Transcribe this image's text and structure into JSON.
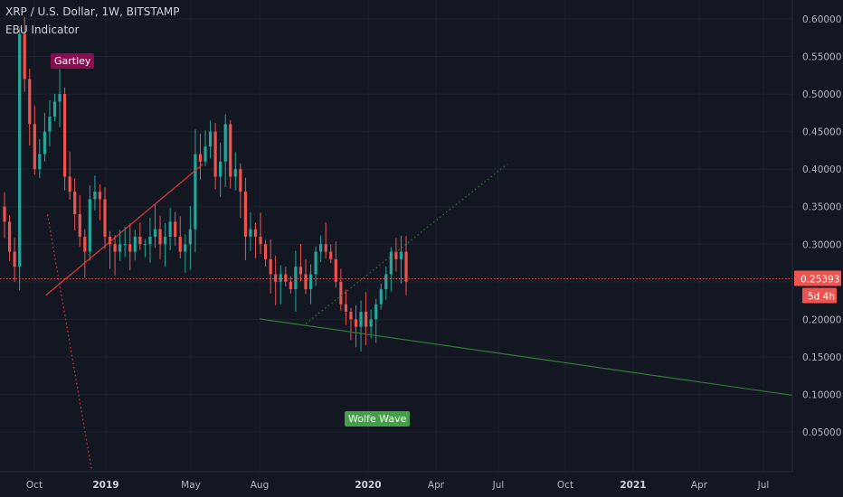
{
  "header": {
    "symbol_line": "XRP / U.S. Dollar, 1W, BITSTAMP",
    "indicator_line": "EBU Indicator"
  },
  "colors": {
    "background": "#131722",
    "grid": "#1e222d",
    "up": "#26a69a",
    "down": "#ef5350",
    "axis_text": "#b2b5be",
    "trend_green": "#2e7d32",
    "trend_red": "#e53935",
    "gartley_bg": "#880e4f",
    "wolfe_bg": "#43a047",
    "price_tag": "#ef5350"
  },
  "annotations": {
    "gartley": "Gartley",
    "wolfe_wave": "Wolfe Wave"
  },
  "price_label": {
    "value": "0.25393",
    "countdown": "5d 4h"
  },
  "chart_data": {
    "type": "candlestick",
    "title": "XRP / U.S. Dollar, 1W, BITSTAMP",
    "ylim": [
      0.0,
      0.62
    ],
    "y_ticks": [
      "0.60000",
      "0.55000",
      "0.50000",
      "0.45000",
      "0.40000",
      "0.35000",
      "0.30000",
      "0.25000",
      "0.20000",
      "0.15000",
      "0.10000",
      "0.05000"
    ],
    "x_ticks": [
      "Oct",
      "2019",
      "May",
      "Aug",
      "2020",
      "Apr",
      "Jul",
      "Oct",
      "2021",
      "Apr",
      "Jul"
    ],
    "x_ticks_bold": [
      "2019",
      "2020",
      "2021"
    ],
    "current_price": 0.25393,
    "closes": [
      0.33,
      0.29,
      0.27,
      0.58,
      0.52,
      0.46,
      0.4,
      0.42,
      0.45,
      0.47,
      0.49,
      0.5,
      0.39,
      0.37,
      0.34,
      0.31,
      0.29,
      0.36,
      0.37,
      0.36,
      0.31,
      0.3,
      0.29,
      0.3,
      0.3,
      0.29,
      0.31,
      0.3,
      0.3,
      0.31,
      0.32,
      0.3,
      0.31,
      0.33,
      0.31,
      0.29,
      0.3,
      0.32,
      0.42,
      0.41,
      0.43,
      0.45,
      0.39,
      0.41,
      0.46,
      0.39,
      0.4,
      0.37,
      0.31,
      0.32,
      0.31,
      0.3,
      0.28,
      0.26,
      0.25,
      0.26,
      0.25,
      0.24,
      0.27,
      0.26,
      0.24,
      0.26,
      0.29,
      0.3,
      0.29,
      0.28,
      0.25,
      0.22,
      0.21,
      0.2,
      0.19,
      0.21,
      0.19,
      0.2,
      0.22,
      0.24,
      0.26,
      0.29,
      0.28,
      0.29,
      0.25
    ],
    "trend_lines": [
      {
        "name": "wolfe-line-1-4",
        "from": [
          0.3275,
          0.324
        ],
        "to": [
          1.0,
          0.162
        ],
        "style": "solid",
        "color": "#2e7d32"
      },
      {
        "name": "wolfe-dotted-upper",
        "from": [
          0.386,
          0.314
        ],
        "to": [
          0.64,
          0.652
        ],
        "style": "dotted",
        "color": "#2e7d32"
      },
      {
        "name": "gartley-red-upper",
        "from": [
          0.058,
          0.374
        ],
        "to": [
          0.256,
          0.652
        ],
        "style": "solid",
        "color": "#e53935"
      },
      {
        "name": "gartley-red-dotted",
        "from": [
          0.06,
          0.545
        ],
        "to": [
          0.116,
          0.0
        ],
        "style": "dotted",
        "color": "#e53935"
      }
    ]
  }
}
